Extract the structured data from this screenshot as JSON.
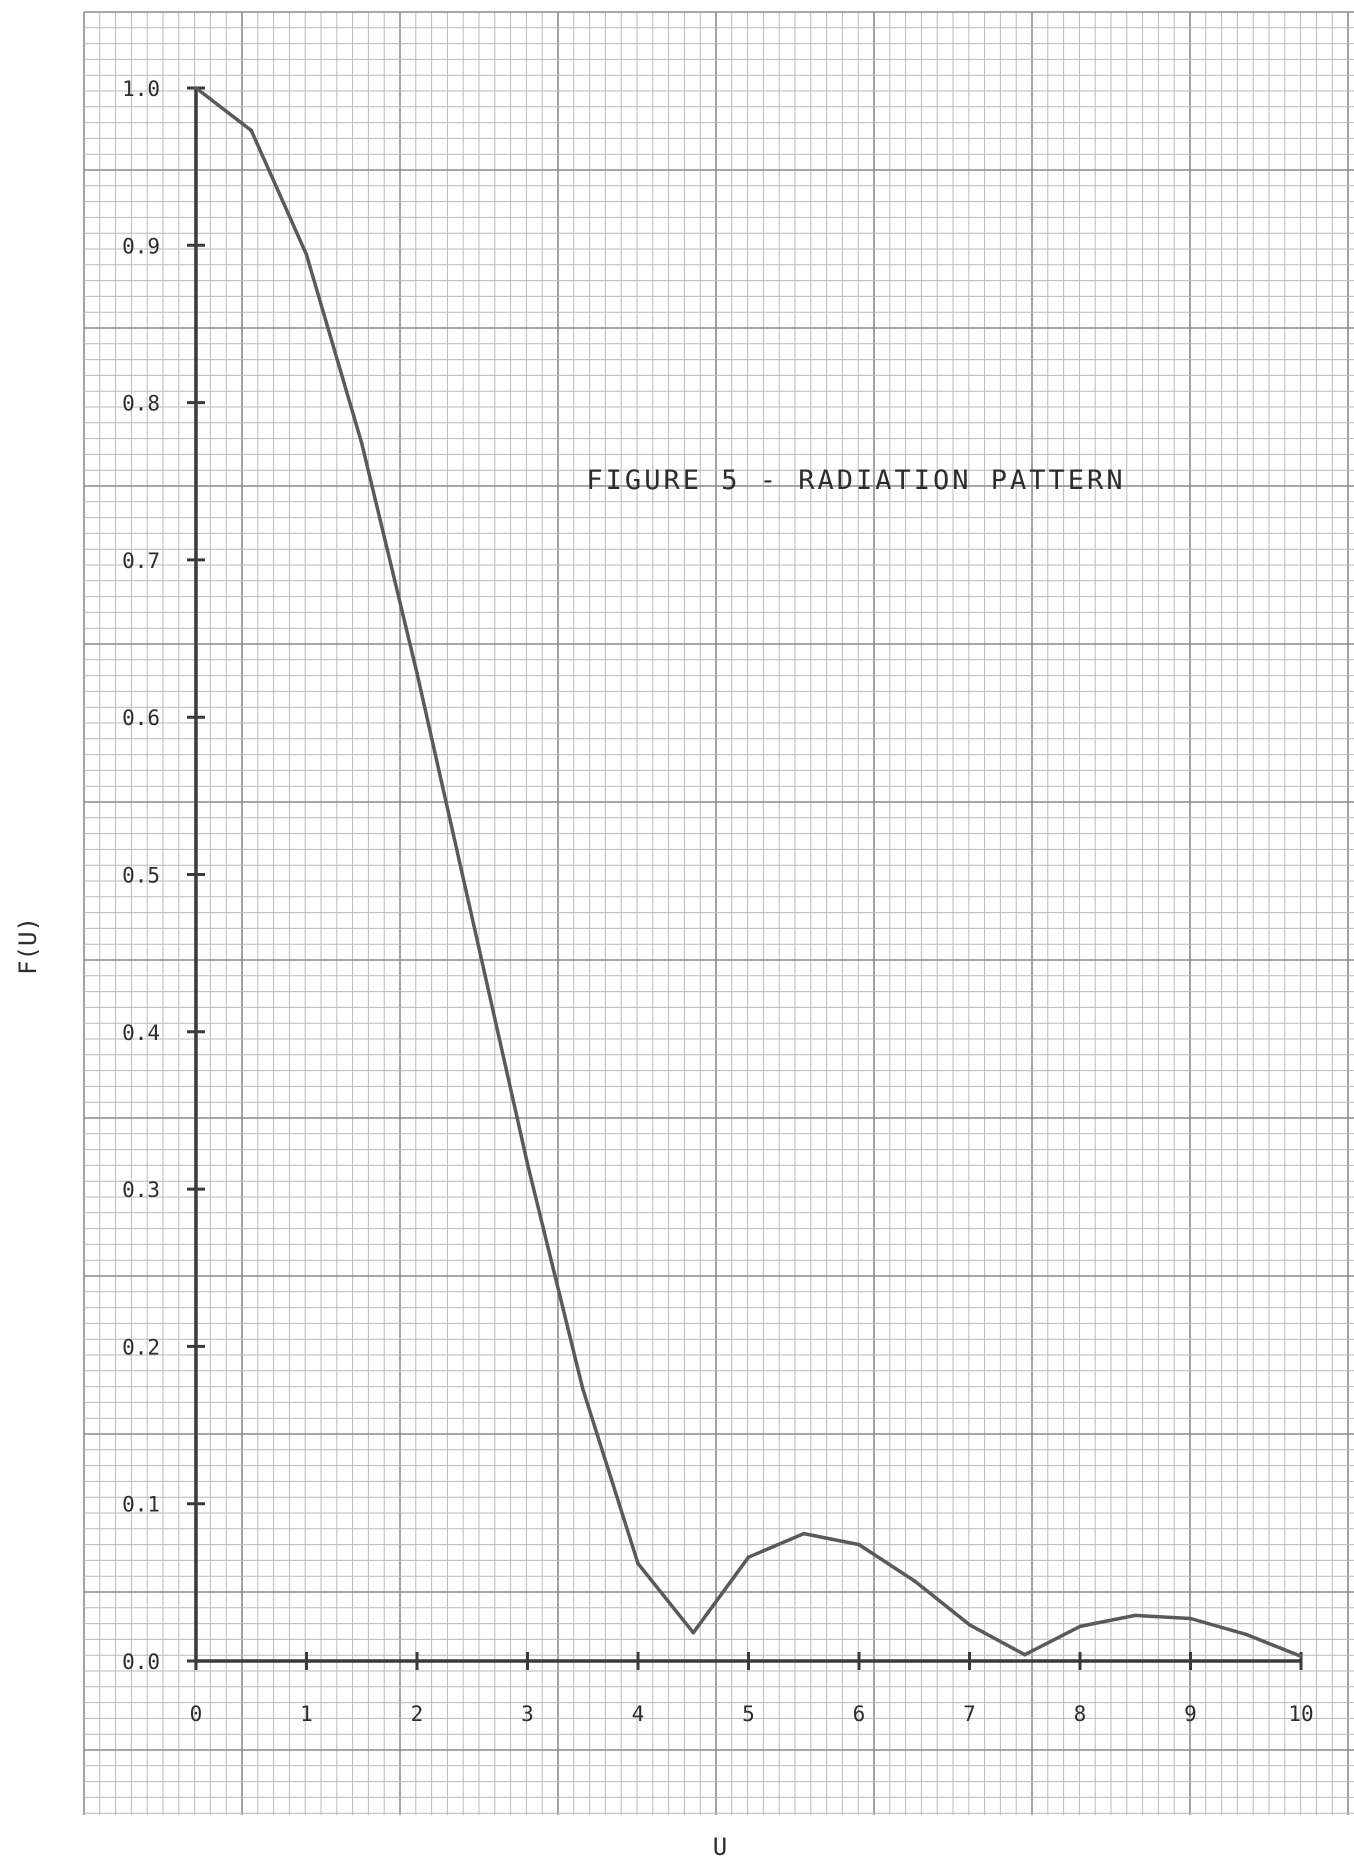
{
  "chart_data": {
    "type": "line",
    "title": "FIGURE 5 - RADIATION PATTERN",
    "xlabel": "U",
    "ylabel": "F(U)",
    "xlim": [
      0,
      10
    ],
    "ylim": [
      0.0,
      1.0
    ],
    "grid": true,
    "x_ticks": [
      0,
      1,
      2,
      3,
      4,
      5,
      6,
      7,
      8,
      9,
      10
    ],
    "x_tick_labels": [
      "0",
      "1",
      "2",
      "3",
      "4",
      "5",
      "6",
      "7",
      "8",
      "9",
      "10"
    ],
    "y_ticks": [
      0.0,
      0.1,
      0.2,
      0.3,
      0.4,
      0.5,
      0.6,
      0.7,
      0.8,
      0.9,
      1.0
    ],
    "y_tick_labels": [
      "0.0",
      "0.1",
      "0.2",
      "0.3",
      "0.4",
      "0.5",
      "0.6",
      "0.7",
      "0.8",
      "0.9",
      "1.0"
    ],
    "x": [
      0,
      0.5,
      1,
      1.5,
      2,
      2.5,
      3,
      3.5,
      4,
      4.5,
      5,
      5.5,
      6,
      6.5,
      7,
      7.5,
      8,
      8.5,
      9,
      9.5,
      10
    ],
    "series": [
      {
        "values": [
          1.0,
          0.973,
          0.894,
          0.774,
          0.628,
          0.472,
          0.316,
          0.173,
          0.062,
          0.018,
          0.066,
          0.081,
          0.074,
          0.051,
          0.023,
          0.004,
          0.022,
          0.029,
          0.027,
          0.017,
          0.003
        ]
      }
    ],
    "colors": {
      "line": "#5a5a5a",
      "axis": "#3a3a3a",
      "grid_minor": "#b9b9b9",
      "grid_major": "#8a8a8a"
    }
  }
}
